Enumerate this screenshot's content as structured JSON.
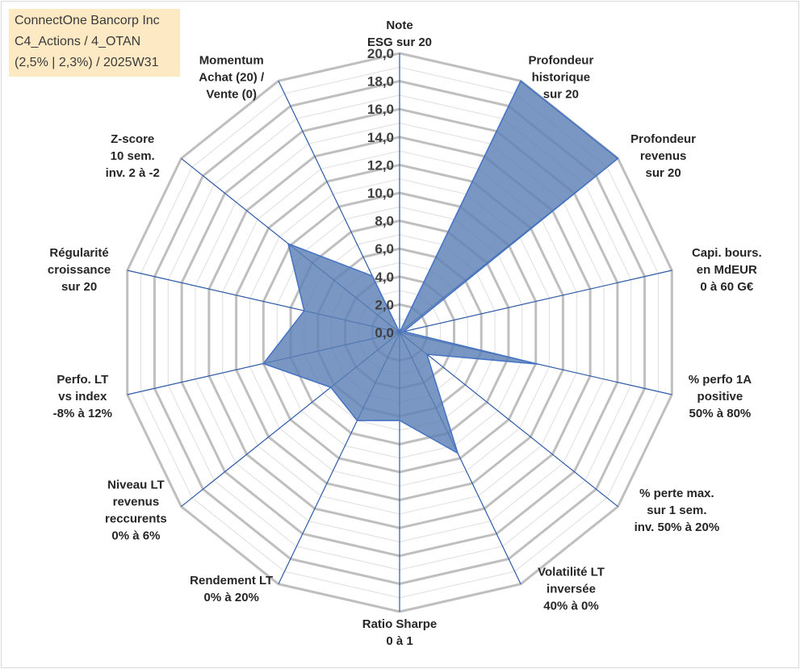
{
  "info": {
    "line1": "ConnectOne Bancorp Inc",
    "line2": "C4_Actions / 4_OTAN",
    "line3": "(2,5% | 2,3%) / 2025W31"
  },
  "chart_data": {
    "type": "radar",
    "rmin": 0,
    "rmax": 20,
    "grid_step": 1,
    "ticks": [
      "0,0",
      "2,0",
      "4,0",
      "6,0",
      "8,0",
      "10,0",
      "12,0",
      "14,0",
      "16,0",
      "18,0",
      "20,0"
    ],
    "axes": [
      {
        "label": [
          "Note",
          "ESG sur 20"
        ],
        "value": 0
      },
      {
        "label": [
          "Profondeur",
          "historique",
          "sur 20"
        ],
        "value": 20
      },
      {
        "label": [
          "Profondeur",
          "revenus",
          "sur 20"
        ],
        "value": 20
      },
      {
        "label": [
          "Capi. bours.",
          "en MdEUR",
          "0 à 60 G€"
        ],
        "value": 0.3
      },
      {
        "label": [
          "% perfo 1A",
          "positive",
          "50% à 80%"
        ],
        "value": 10.2
      },
      {
        "label": [
          "% perte max.",
          "sur 1 sem.",
          "inv. 50% à 20%"
        ],
        "value": 2.5
      },
      {
        "label": [
          "Volatilité LT",
          "inversée",
          "40% à 0%"
        ],
        "value": 9.6
      },
      {
        "label": [
          "Ratio Sharpe",
          "0 à 1"
        ],
        "value": 6.3
      },
      {
        "label": [
          "Rendement LT",
          "0% à 20%"
        ],
        "value": 7.0
      },
      {
        "label": [
          "Niveau LT",
          "revenus",
          "reccurents",
          "0% à 6%"
        ],
        "value": 6.3
      },
      {
        "label": [
          "Perfo. LT",
          "vs index",
          "-8% à 12%"
        ],
        "value": 10.0
      },
      {
        "label": [
          "Régularité",
          "croissance",
          "sur 20"
        ],
        "value": 7.0
      },
      {
        "label": [
          "Z-score",
          "10 sem.",
          "inv. 2 à -2"
        ],
        "value": 10.2
      },
      {
        "label": [
          "Momentum",
          "Achat (20) /",
          "Vente (0)"
        ],
        "value": 4.5
      }
    ],
    "colors": {
      "fill": "#5b80b5",
      "fill_opacity": 0.82,
      "series_stroke": "#4472c4",
      "spoke": "#2e5aa6",
      "major_grid": "#bfbfbf",
      "minor_grid": "#e3e3e3"
    }
  }
}
